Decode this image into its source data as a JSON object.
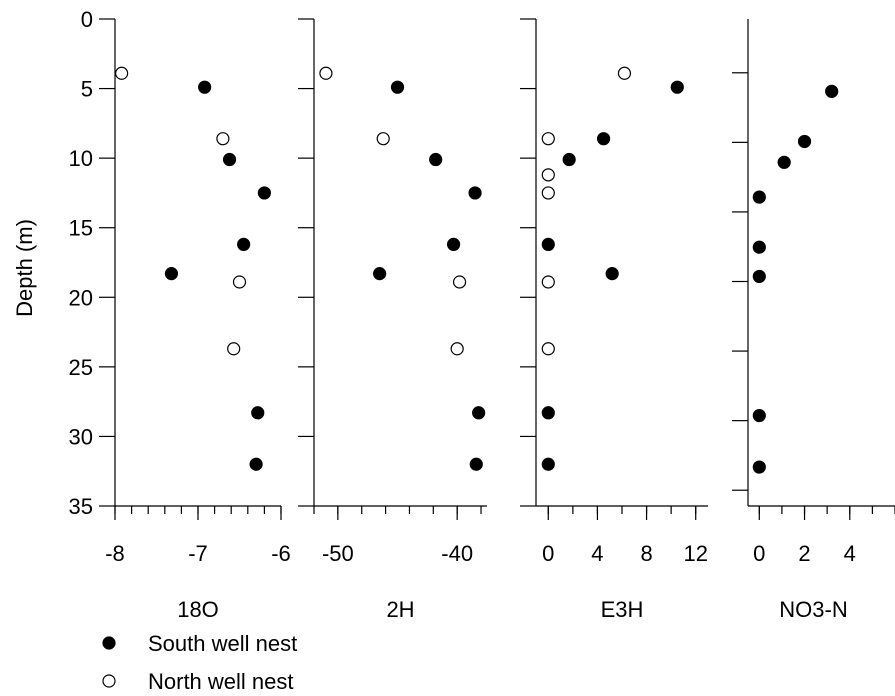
{
  "y_axis": {
    "label": "Depth (m)",
    "range": [
      0,
      35
    ],
    "ticks": [
      0,
      5,
      10,
      15,
      20,
      25,
      30,
      35
    ]
  },
  "legend": {
    "placement": "bottom-left",
    "items": [
      {
        "name": "South well nest",
        "marker": "filled-circle"
      },
      {
        "name": "North well nest",
        "marker": "open-circle"
      }
    ]
  },
  "chart_data": [
    {
      "type": "scatter",
      "xlabel": "18O",
      "ylabel": "Depth (m)",
      "xlim": [
        -8,
        -6
      ],
      "xticks": [
        -8,
        -7,
        -6
      ],
      "xminor": 0.2,
      "ylim": [
        35,
        0
      ],
      "yticks": [
        0,
        5,
        10,
        15,
        20,
        25,
        30,
        35
      ],
      "series": [
        {
          "name": "South well nest",
          "filled": true,
          "x": [
            -6.92,
            -6.62,
            -6.2,
            -6.45,
            -7.32,
            -6.28,
            -6.3
          ],
          "y": [
            4.9,
            10.1,
            12.5,
            16.2,
            18.3,
            28.3,
            32
          ]
        },
        {
          "name": "North well nest",
          "filled": false,
          "x": [
            -7.92,
            -6.7,
            -6.5,
            -6.57
          ],
          "y": [
            3.9,
            8.6,
            18.9,
            23.7
          ]
        }
      ]
    },
    {
      "type": "scatter",
      "xlabel": "2H",
      "ylabel": "",
      "xlim": [
        -52,
        -37.5
      ],
      "xticks": [
        -50,
        -40
      ],
      "xminor": 2,
      "ylim": [
        35,
        0
      ],
      "yticks": [
        0,
        5,
        10,
        15,
        20,
        25,
        30,
        35
      ],
      "series": [
        {
          "name": "South well nest",
          "filled": true,
          "x": [
            -45,
            -41.8,
            -38.5,
            -40.3,
            -46.5,
            -38.2,
            -38.4
          ],
          "y": [
            4.9,
            10.1,
            12.5,
            16.2,
            18.3,
            28.3,
            32
          ]
        },
        {
          "name": "North well nest",
          "filled": false,
          "x": [
            -51,
            -46.2,
            -39.8,
            -40
          ],
          "y": [
            3.9,
            8.6,
            18.9,
            23.7
          ]
        }
      ]
    },
    {
      "type": "scatter",
      "xlabel": "E3H",
      "ylabel": "",
      "xlim": [
        -1,
        13
      ],
      "xticks": [
        0,
        4,
        8,
        12
      ],
      "xminor": 2,
      "ylim": [
        35,
        0
      ],
      "yticks": [
        0,
        5,
        10,
        15,
        20,
        25,
        30,
        35
      ],
      "series": [
        {
          "name": "South well nest",
          "filled": true,
          "x": [
            10.5,
            4.5,
            1.7,
            0,
            5.2,
            0,
            0
          ],
          "y": [
            4.9,
            8.6,
            10.1,
            16.2,
            18.3,
            28.3,
            32
          ]
        },
        {
          "name": "North well nest",
          "filled": false,
          "x": [
            6.2,
            0,
            0,
            0,
            0,
            0
          ],
          "y": [
            3.9,
            8.6,
            11.2,
            12.5,
            18.9,
            23.7
          ]
        }
      ]
    },
    {
      "type": "scatter",
      "xlabel": "NO3-N",
      "ylabel": "",
      "xlim": [
        -0.5,
        6
      ],
      "xticks": [
        0,
        2,
        4
      ],
      "xminor": 1,
      "ylim": [
        35,
        0
      ],
      "series": [
        {
          "name": "South well nest",
          "filled": true,
          "x": [
            3.2,
            2,
            1.1,
            0,
            0,
            0,
            0,
            0
          ],
          "y": [
            5.2,
            8.8,
            10.3,
            12.8,
            16.4,
            18.5,
            28.5,
            32.2
          ]
        }
      ]
    }
  ]
}
